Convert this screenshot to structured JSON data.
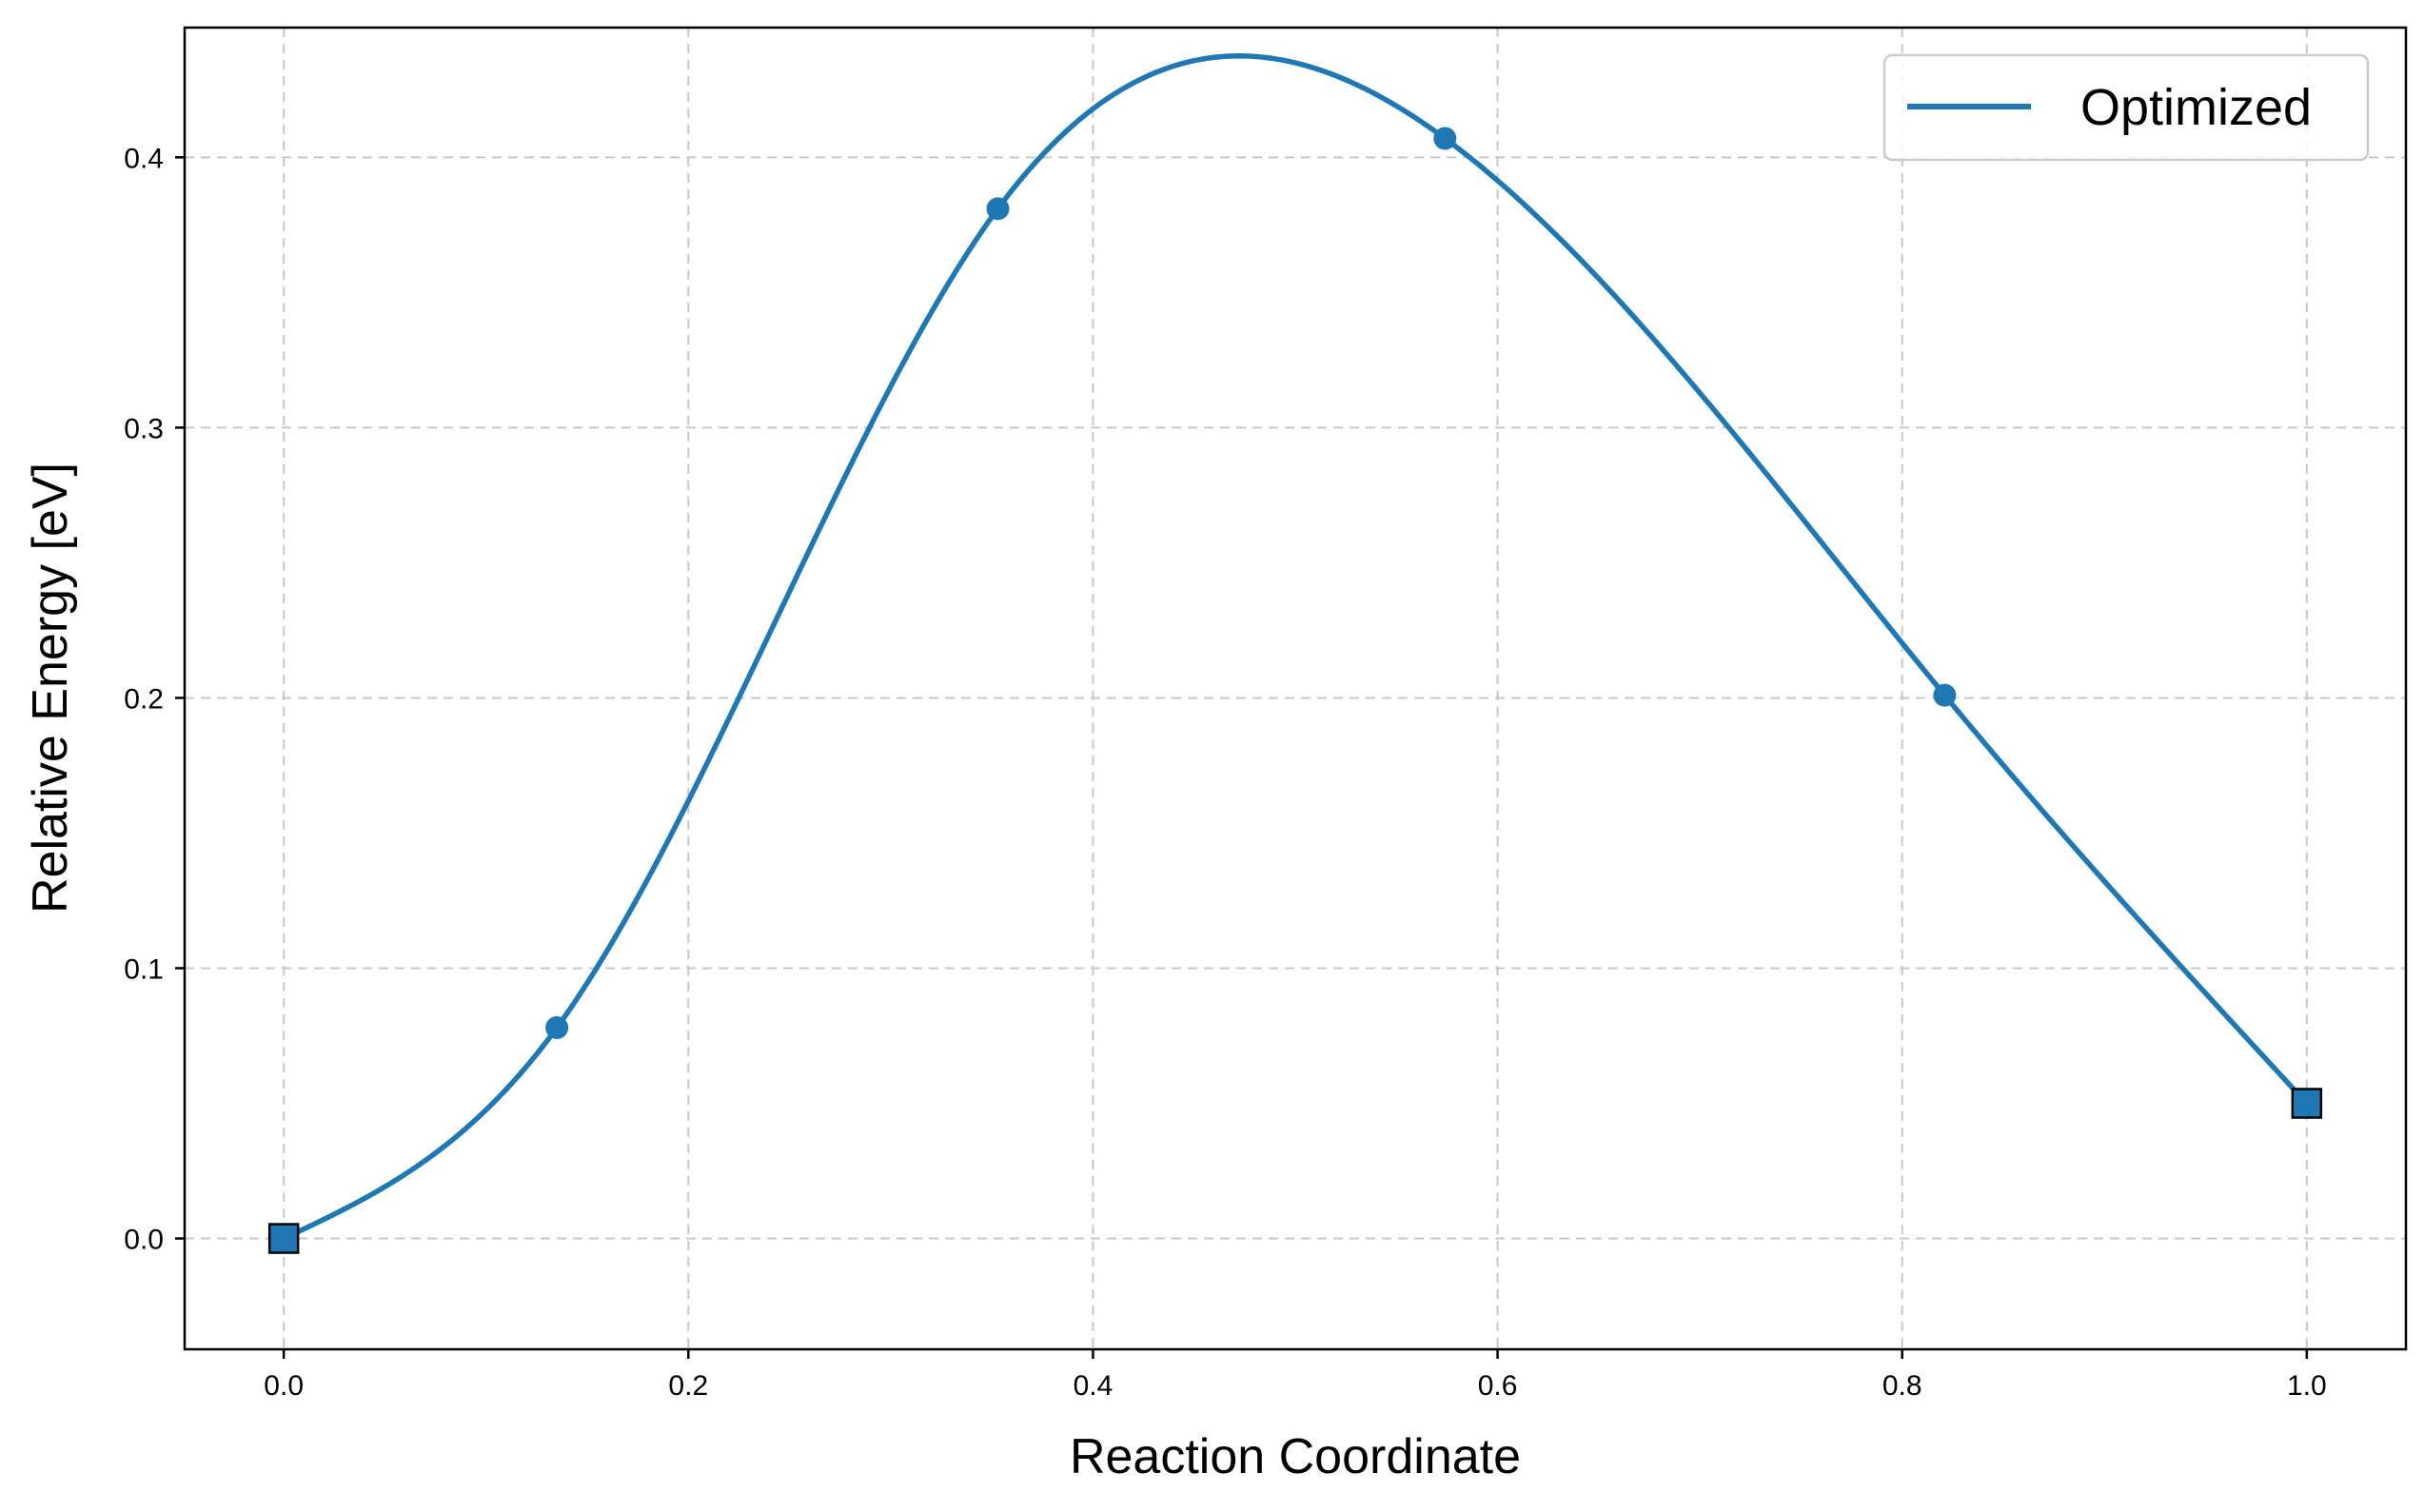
{
  "chart_data": {
    "type": "line",
    "xlabel": "Reaction Coordinate",
    "ylabel": "Relative Energy [eV]",
    "xlim": [
      -0.049,
      1.049
    ],
    "ylim": [
      -0.041,
      0.448
    ],
    "x_ticks": [
      0.0,
      0.2,
      0.4,
      0.6,
      0.8,
      1.0
    ],
    "x_tick_labels": [
      "0.0",
      "0.2",
      "0.4",
      "0.6",
      "0.8",
      "1.0"
    ],
    "y_ticks": [
      0.0,
      0.1,
      0.2,
      0.3,
      0.4
    ],
    "y_tick_labels": [
      "0.0",
      "0.1",
      "0.2",
      "0.3",
      "0.4"
    ],
    "grid": true,
    "legend_position": "top-right",
    "series": [
      {
        "name": "Optimized",
        "color": "#1f77b4",
        "x": [
          0.0,
          0.135,
          0.353,
          0.574,
          0.821,
          1.0
        ],
        "y": [
          0.0,
          0.078,
          0.381,
          0.407,
          0.201,
          0.05
        ],
        "endpoint_marker": "square",
        "intermediate_marker": "circle"
      }
    ]
  }
}
